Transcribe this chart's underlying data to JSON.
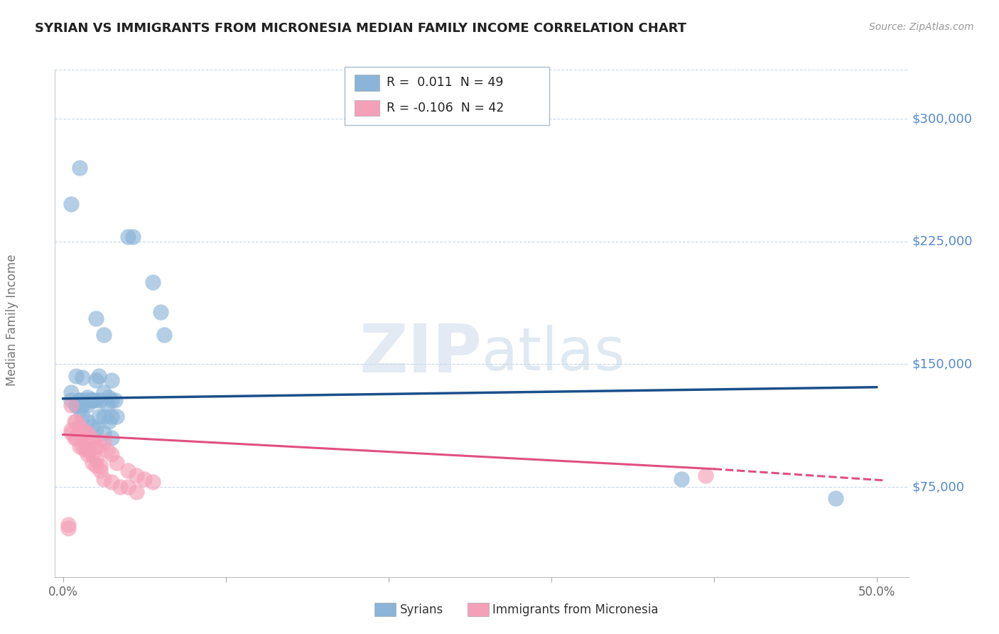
{
  "title": "SYRIAN VS IMMIGRANTS FROM MICRONESIA MEDIAN FAMILY INCOME CORRELATION CHART",
  "source": "Source: ZipAtlas.com",
  "ylabel": "Median Family Income",
  "ytick_labels": [
    "$75,000",
    "$150,000",
    "$225,000",
    "$300,000"
  ],
  "ytick_values": [
    75000,
    150000,
    225000,
    300000
  ],
  "ylim": [
    20000,
    330000
  ],
  "xlim": [
    -0.005,
    0.52
  ],
  "watermark": "ZIPatlas",
  "blue_color": "#8ab4d8",
  "pink_color": "#f4a0b8",
  "line_blue": "#1a4f8a",
  "line_pink": "#e05080",
  "title_color": "#222222",
  "axis_label_color": "#777777",
  "ytick_color": "#5588cc",
  "grid_color": "#c8d8e8",
  "background_color": "#ffffff",
  "syrians_x": [
    0.005,
    0.01,
    0.04,
    0.043,
    0.055,
    0.06,
    0.062,
    0.02,
    0.025,
    0.03,
    0.005,
    0.008,
    0.012,
    0.015,
    0.018,
    0.02,
    0.022,
    0.025,
    0.028,
    0.03,
    0.032,
    0.01,
    0.012,
    0.015,
    0.018,
    0.02,
    0.023,
    0.027,
    0.03,
    0.033,
    0.008,
    0.01,
    0.013,
    0.015,
    0.018,
    0.022,
    0.025,
    0.028,
    0.475,
    0.005,
    0.008,
    0.01,
    0.012,
    0.015,
    0.018,
    0.02,
    0.025,
    0.03,
    0.38
  ],
  "syrians_y": [
    248000,
    270000,
    228000,
    228000,
    200000,
    182000,
    168000,
    178000,
    168000,
    140000,
    133000,
    143000,
    142000,
    130000,
    128000,
    140000,
    143000,
    133000,
    130000,
    128000,
    128000,
    128000,
    125000,
    125000,
    128000,
    128000,
    128000,
    125000,
    118000,
    118000,
    125000,
    128000,
    128000,
    128000,
    128000,
    118000,
    118000,
    115000,
    68000,
    128000,
    125000,
    123000,
    118000,
    115000,
    112000,
    110000,
    108000,
    105000,
    80000
  ],
  "micronesia_x": [
    0.003,
    0.005,
    0.007,
    0.008,
    0.01,
    0.012,
    0.013,
    0.015,
    0.017,
    0.018,
    0.02,
    0.022,
    0.025,
    0.027,
    0.03,
    0.033,
    0.04,
    0.045,
    0.05,
    0.055,
    0.005,
    0.007,
    0.01,
    0.013,
    0.015,
    0.018,
    0.02,
    0.023,
    0.025,
    0.03,
    0.035,
    0.04,
    0.045,
    0.005,
    0.008,
    0.012,
    0.015,
    0.018,
    0.02,
    0.023,
    0.395,
    0.003
  ],
  "micronesia_y": [
    50000,
    125000,
    115000,
    115000,
    112000,
    110000,
    108000,
    108000,
    105000,
    103000,
    100000,
    100000,
    103000,
    97000,
    95000,
    90000,
    85000,
    82000,
    80000,
    78000,
    110000,
    105000,
    100000,
    98000,
    95000,
    90000,
    88000,
    85000,
    80000,
    78000,
    75000,
    75000,
    72000,
    108000,
    105000,
    100000,
    98000,
    95000,
    92000,
    88000,
    82000,
    52000
  ],
  "blue_trendline": [
    0.0,
    0.5,
    129000,
    136000
  ],
  "pink_trendline_solid": [
    0.0,
    0.4,
    107000,
    86000
  ],
  "pink_trendline_dash": [
    0.4,
    0.505,
    86000,
    79000
  ]
}
